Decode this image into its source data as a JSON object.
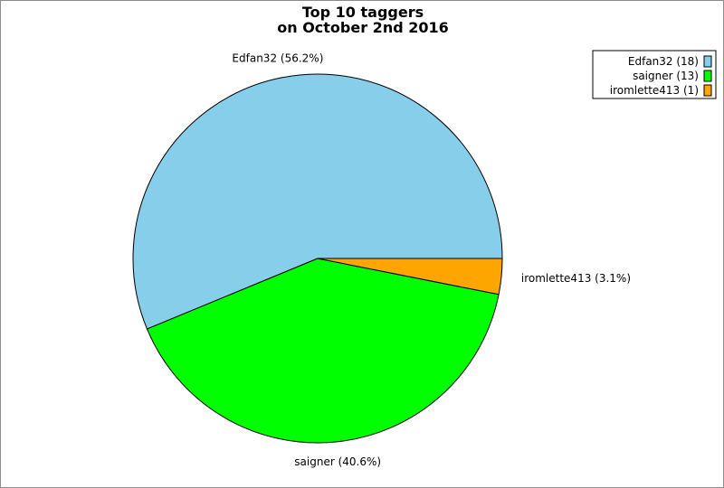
{
  "chart_data": {
    "type": "pie",
    "title": "Top 10 taggers",
    "subtitle": "on October 2nd 2016",
    "categories": [
      "Edfan32",
      "saigner",
      "iromlette413"
    ],
    "values": [
      18,
      13,
      1
    ],
    "slice_labels": [
      "Edfan32 (56.2%)",
      "saigner (40.6%)",
      "iromlette413 (3.1%)"
    ],
    "legend_entries": [
      "Edfan32 (18)",
      "saigner (13)",
      "iromlette413 (1)"
    ],
    "colors": [
      "#87ceeb",
      "#00ff00",
      "#ffa500"
    ],
    "legend_position": "top-right"
  }
}
